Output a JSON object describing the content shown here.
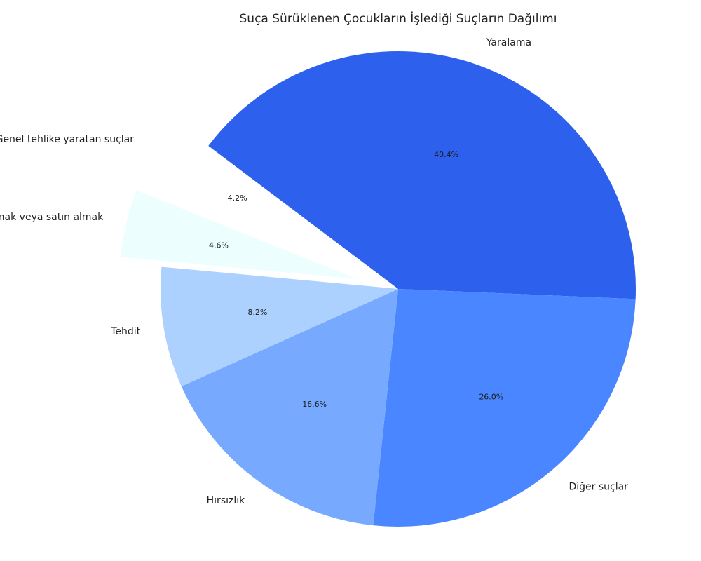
{
  "chart_data": {
    "type": "pie",
    "title": "Suça Sürüklenen Çocukların İşlediği Suçların Dağılımı",
    "start_angle_deg": 143,
    "direction": "clockwise",
    "exploded": [
      "Genel tehlike yaratan suçlar",
      "Uyuşturucu veya uyarıcı madde kullanmak, satmak veya satın almak"
    ],
    "slices": [
      {
        "label": "Yaralama",
        "value": 40.4,
        "pct_label": "40.4%",
        "color": "#2d60ec"
      },
      {
        "label": "Diğer suçlar",
        "value": 26.0,
        "pct_label": "26.0%",
        "color": "#4a86ff"
      },
      {
        "label": "Hırsızlık",
        "value": 16.6,
        "pct_label": "16.6%",
        "color": "#77aaff"
      },
      {
        "label": "Tehdit",
        "value": 8.2,
        "pct_label": "8.2%",
        "color": "#add1ff"
      },
      {
        "label": "Uyuşturucu veya uyarıcı madde kullanmak, satmak veya satın almak",
        "value": 4.6,
        "pct_label": "4.6%",
        "color": "#edfeff"
      },
      {
        "label": "Genel tehlike yaratan suçlar",
        "value": 4.2,
        "pct_label": "4.2%",
        "color": "#ffffff"
      }
    ]
  }
}
